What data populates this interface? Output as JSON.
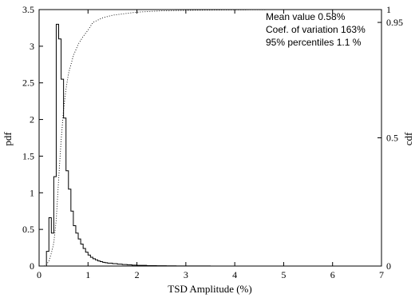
{
  "chart_data": {
    "type": "line",
    "xlabel": "TSD Amplitude (%)",
    "ylabel_left": "pdf",
    "ylabel_right": "cdf",
    "xlim": [
      0,
      7
    ],
    "ylim_left": [
      0,
      3.5
    ],
    "ylim_right": [
      0,
      1
    ],
    "x_ticks": [
      "0",
      "1",
      "2",
      "3",
      "4",
      "5",
      "6",
      "7"
    ],
    "y_left_ticks": [
      "0",
      "0.5",
      "1",
      "1.5",
      "2",
      "2.5",
      "3",
      "3.5"
    ],
    "y_right_ticks": [
      "0",
      "0.5",
      "0.95",
      "1"
    ],
    "grid": false,
    "annotations": [
      "Mean value  0.58%",
      "Coef. of variation  163%",
      "95% percentiles 1.1 %"
    ],
    "pdf_bin_width": 0.05,
    "pdf_bins": [
      {
        "x": 0.1,
        "y": 0.0
      },
      {
        "x": 0.15,
        "y": 0.2
      },
      {
        "x": 0.2,
        "y": 0.66
      },
      {
        "x": 0.25,
        "y": 0.45
      },
      {
        "x": 0.3,
        "y": 1.22
      },
      {
        "x": 0.35,
        "y": 3.3
      },
      {
        "x": 0.4,
        "y": 3.1
      },
      {
        "x": 0.45,
        "y": 2.55
      },
      {
        "x": 0.5,
        "y": 2.02
      },
      {
        "x": 0.55,
        "y": 1.3
      },
      {
        "x": 0.6,
        "y": 1.05
      },
      {
        "x": 0.65,
        "y": 0.75
      },
      {
        "x": 0.7,
        "y": 0.55
      },
      {
        "x": 0.75,
        "y": 0.45
      },
      {
        "x": 0.8,
        "y": 0.37
      },
      {
        "x": 0.85,
        "y": 0.3
      },
      {
        "x": 0.9,
        "y": 0.24
      },
      {
        "x": 0.95,
        "y": 0.19
      },
      {
        "x": 1.0,
        "y": 0.15
      },
      {
        "x": 1.05,
        "y": 0.12
      },
      {
        "x": 1.1,
        "y": 0.1
      },
      {
        "x": 1.15,
        "y": 0.085
      },
      {
        "x": 1.2,
        "y": 0.07
      },
      {
        "x": 1.25,
        "y": 0.06
      },
      {
        "x": 1.3,
        "y": 0.05
      },
      {
        "x": 1.35,
        "y": 0.045
      },
      {
        "x": 1.4,
        "y": 0.04
      },
      {
        "x": 1.5,
        "y": 0.033
      },
      {
        "x": 1.6,
        "y": 0.026
      },
      {
        "x": 1.7,
        "y": 0.02
      },
      {
        "x": 1.8,
        "y": 0.016
      },
      {
        "x": 1.9,
        "y": 0.012
      },
      {
        "x": 2.0,
        "y": 0.009
      },
      {
        "x": 2.2,
        "y": 0.006
      },
      {
        "x": 2.4,
        "y": 0.004
      },
      {
        "x": 2.6,
        "y": 0.003
      },
      {
        "x": 2.8,
        "y": 0.002
      },
      {
        "x": 3.0,
        "y": 0.001
      },
      {
        "x": 3.5,
        "y": 0.0005
      },
      {
        "x": 4.0,
        "y": 0.0
      }
    ],
    "cdf_points": [
      {
        "x": 0.1,
        "y": 0.0
      },
      {
        "x": 0.15,
        "y": 0.005
      },
      {
        "x": 0.2,
        "y": 0.02
      },
      {
        "x": 0.25,
        "y": 0.05
      },
      {
        "x": 0.3,
        "y": 0.09
      },
      {
        "x": 0.35,
        "y": 0.18
      },
      {
        "x": 0.4,
        "y": 0.34
      },
      {
        "x": 0.45,
        "y": 0.49
      },
      {
        "x": 0.5,
        "y": 0.61
      },
      {
        "x": 0.55,
        "y": 0.69
      },
      {
        "x": 0.6,
        "y": 0.75
      },
      {
        "x": 0.7,
        "y": 0.82
      },
      {
        "x": 0.8,
        "y": 0.865
      },
      {
        "x": 0.9,
        "y": 0.895
      },
      {
        "x": 1.0,
        "y": 0.92
      },
      {
        "x": 1.1,
        "y": 0.95
      },
      {
        "x": 1.3,
        "y": 0.968
      },
      {
        "x": 1.5,
        "y": 0.978
      },
      {
        "x": 2.0,
        "y": 0.99
      },
      {
        "x": 2.5,
        "y": 0.995
      },
      {
        "x": 3.0,
        "y": 0.997
      },
      {
        "x": 4.0,
        "y": 0.999
      },
      {
        "x": 5.0,
        "y": 1.0
      },
      {
        "x": 7.0,
        "y": 1.0
      }
    ]
  }
}
